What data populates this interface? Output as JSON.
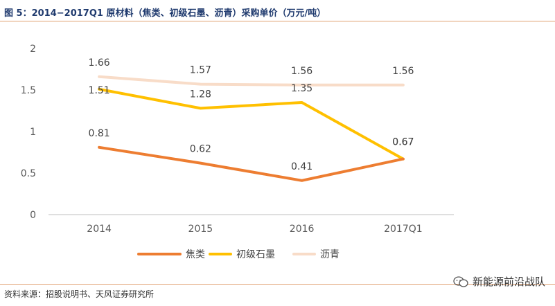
{
  "header": {
    "title": "图 5：2014−2017Q1 原材料（焦类、初级石墨、沥青）采购单价（万元/吨）"
  },
  "footer": {
    "source": "资料来源：招股说明书、天风证券研究所",
    "watermark": "新能源前沿战队"
  },
  "colors": {
    "rule": "#e0a070",
    "title": "#1f3a6e",
    "axis": "#bfbfbf"
  },
  "chart_data": {
    "type": "line",
    "title": "2014−2017Q1 原材料（焦类、初级石墨、沥青）采购单价（万元/吨）",
    "categories": [
      "2014",
      "2015",
      "2016",
      "2017Q1"
    ],
    "y_ticks": [
      "0",
      "0.5",
      "1",
      "1.5",
      "2"
    ],
    "ylim": [
      0,
      2
    ],
    "grid": false,
    "legend_position": "bottom",
    "series": [
      {
        "name": "焦类",
        "color": "#ed7d31",
        "values": [
          0.81,
          0.62,
          0.41,
          0.67
        ],
        "labels": [
          "0.81",
          "0.62",
          "0.41",
          "0.67"
        ]
      },
      {
        "name": "初级石墨",
        "color": "#ffc000",
        "values": [
          1.51,
          1.28,
          1.35,
          0.67
        ],
        "labels": [
          "1.51",
          "1.28",
          "1.35",
          "0.67"
        ]
      },
      {
        "name": "沥青",
        "color": "#f8dcc8",
        "values": [
          1.66,
          1.57,
          1.56,
          1.56
        ],
        "labels": [
          "1.66",
          "1.57",
          "1.56",
          "1.56"
        ]
      }
    ]
  }
}
